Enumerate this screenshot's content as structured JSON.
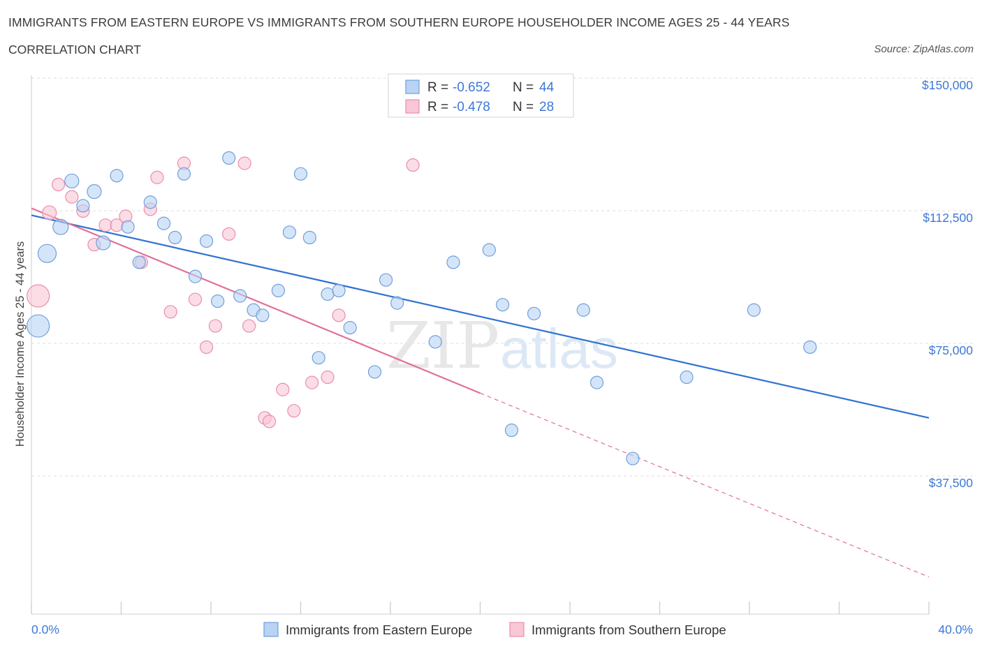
{
  "header": {
    "title": "IMMIGRANTS FROM EASTERN EUROPE VS IMMIGRANTS FROM SOUTHERN EUROPE HOUSEHOLDER INCOME AGES 25 - 44 YEARS",
    "subtitle": "CORRELATION CHART",
    "source": "Source: ZipAtlas.com"
  },
  "colors": {
    "eastern_fill": "#b9d3f5",
    "eastern_stroke": "#6f9fd8",
    "eastern_line": "#2f72d0",
    "southern_fill": "#f9c6d5",
    "southern_stroke": "#e98eab",
    "southern_line": "#e0709a",
    "axis_label": "#3d78d6",
    "grid": "#dcdcdc"
  },
  "watermark": {
    "zip": "ZIP",
    "atlas": "atlas"
  },
  "chart_data": {
    "type": "scatter",
    "xlabel": "",
    "ylabel": "Householder Income Ages 25 - 44 years",
    "xlim": [
      0,
      40
    ],
    "ylim": [
      0,
      150000
    ],
    "x_tick_labels": [
      {
        "value": 0,
        "label": "0.0%"
      },
      {
        "value": 40,
        "label": "40.0%"
      }
    ],
    "y_ticks": [
      {
        "value": 37500,
        "label": "$37,500"
      },
      {
        "value": 75000,
        "label": "$75,000"
      },
      {
        "value": 112500,
        "label": "$112,500"
      },
      {
        "value": 150000,
        "label": "$150,000"
      }
    ],
    "x_minor_ticks": [
      0,
      4,
      8,
      12,
      16,
      20,
      24,
      28,
      32,
      36,
      40
    ],
    "grid": true,
    "legend_placement": "top-center",
    "stats": [
      {
        "r_label": "R =",
        "r": "-0.652",
        "n_label": "N =",
        "n": "44"
      },
      {
        "r_label": "R =",
        "r": "-0.478",
        "n_label": "N =",
        "n": "28"
      }
    ],
    "series": [
      {
        "name": "Immigrants from Eastern Europe",
        "color": "eastern",
        "points": [
          [
            0.3,
            81500,
            16
          ],
          [
            0.7,
            102000,
            13
          ],
          [
            1.3,
            109500,
            11
          ],
          [
            1.8,
            122500,
            10
          ],
          [
            2.3,
            115500,
            9
          ],
          [
            2.8,
            119500,
            10
          ],
          [
            3.2,
            105000,
            10
          ],
          [
            3.8,
            124000,
            9
          ],
          [
            4.3,
            109500,
            9
          ],
          [
            4.8,
            99500,
            9
          ],
          [
            5.3,
            116500,
            9
          ],
          [
            5.9,
            110500,
            9
          ],
          [
            6.4,
            106500,
            9
          ],
          [
            6.8,
            124500,
            9
          ],
          [
            7.3,
            95500,
            9
          ],
          [
            7.8,
            105500,
            9
          ],
          [
            8.3,
            88500,
            9
          ],
          [
            8.8,
            129000,
            9
          ],
          [
            9.3,
            90000,
            9
          ],
          [
            9.9,
            86000,
            9
          ],
          [
            10.3,
            84500,
            9
          ],
          [
            11.0,
            91500,
            9
          ],
          [
            11.5,
            108000,
            9
          ],
          [
            12.0,
            124500,
            9
          ],
          [
            12.4,
            106500,
            9
          ],
          [
            12.8,
            72500,
            9
          ],
          [
            13.2,
            90500,
            9
          ],
          [
            13.7,
            91500,
            9
          ],
          [
            14.2,
            81000,
            9
          ],
          [
            15.3,
            68500,
            9
          ],
          [
            15.8,
            94500,
            9
          ],
          [
            16.3,
            88000,
            9
          ],
          [
            18.0,
            77000,
            9
          ],
          [
            18.8,
            99500,
            9
          ],
          [
            20.4,
            103000,
            9
          ],
          [
            21.0,
            87500,
            9
          ],
          [
            21.4,
            52000,
            9
          ],
          [
            22.4,
            85000,
            9
          ],
          [
            24.6,
            86000,
            9
          ],
          [
            25.2,
            65500,
            9
          ],
          [
            26.8,
            44000,
            9
          ],
          [
            29.2,
            67000,
            9
          ],
          [
            32.2,
            86000,
            9
          ],
          [
            34.7,
            75500,
            9
          ]
        ],
        "trend": {
          "x1": 0,
          "y1": 112800,
          "x2": 40,
          "y2": 55500
        }
      },
      {
        "name": "Immigrants from Southern Europe",
        "color": "southern",
        "points": [
          [
            0.3,
            90000,
            16
          ],
          [
            0.8,
            113500,
            10
          ],
          [
            1.2,
            121500,
            9
          ],
          [
            1.8,
            118000,
            9
          ],
          [
            2.3,
            114000,
            9
          ],
          [
            2.8,
            104500,
            9
          ],
          [
            3.3,
            110000,
            9
          ],
          [
            3.8,
            110000,
            9
          ],
          [
            4.2,
            112500,
            9
          ],
          [
            4.9,
            99500,
            9
          ],
          [
            5.3,
            114500,
            9
          ],
          [
            5.6,
            123500,
            9
          ],
          [
            6.2,
            85500,
            9
          ],
          [
            6.8,
            127500,
            9
          ],
          [
            7.3,
            89000,
            9
          ],
          [
            7.8,
            75500,
            9
          ],
          [
            8.2,
            81500,
            9
          ],
          [
            8.8,
            107500,
            9
          ],
          [
            9.5,
            127500,
            9
          ],
          [
            9.7,
            81500,
            9
          ],
          [
            10.4,
            55500,
            9
          ],
          [
            10.6,
            54500,
            9
          ],
          [
            11.2,
            63500,
            9
          ],
          [
            11.7,
            57500,
            9
          ],
          [
            12.5,
            65500,
            9
          ],
          [
            13.2,
            67000,
            9
          ],
          [
            13.7,
            84500,
            9
          ],
          [
            17.0,
            127000,
            9
          ]
        ],
        "trend": {
          "x1": 0,
          "y1": 114800,
          "x2": 20,
          "y2": 62500
        },
        "trend_extension": {
          "x1": 20,
          "y1": 62500,
          "x2": 40,
          "y2": 10500
        }
      }
    ]
  }
}
